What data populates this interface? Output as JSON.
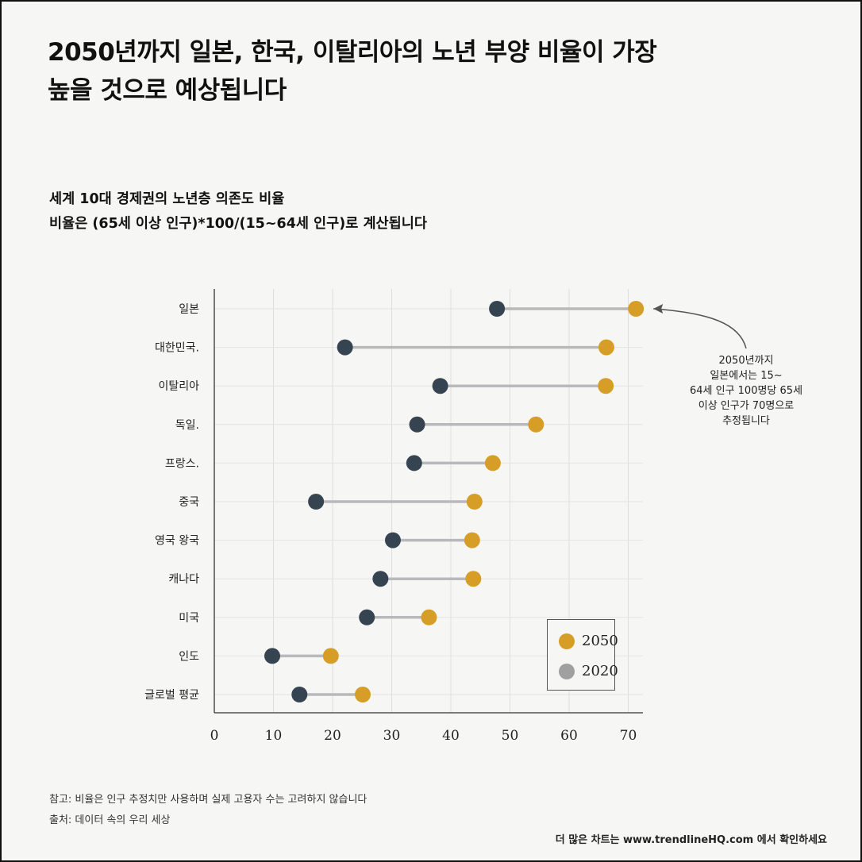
{
  "title_line1": "2050년까지 일본, 한국, 이탈리아의 노년 부양 비율이 가장",
  "title_line2": "높을 것으로 예상됩니다",
  "subtitle_line1": "세계 10대 경제권의 노년층 의존도 비율",
  "subtitle_line2": "비율은 (65세 이상 인구)*100/(15~64세 인구)로 계산됩니다",
  "annotation": {
    "line1": "2050년까지",
    "line2": "일본에서는 15~",
    "line3": "64세 인구 100명당 65세",
    "line4": "이상 인구가 70명으로",
    "line5": "추정됩니다"
  },
  "note": "참고: 비율은 인구 추정치만 사용하며 실제 고용자 수는 고려하지 않습니다",
  "source": "출처: 데이터 속의 우리 세상",
  "footer": "더 많은 차트는 www.trendlineHQ.com 에서 확인하세요",
  "colors": {
    "series_2050": "#d79e27",
    "series_2020": "#364451",
    "legend_2020": "#a0a0a0",
    "connector": "#b9b9bd"
  },
  "chart_data": {
    "type": "dumbbell",
    "categories": [
      "일본",
      "대한민국.",
      "이탈리아",
      "독일.",
      "프랑스.",
      "중국",
      "영국 왕국",
      "캐나다",
      "미국",
      "인도",
      "글로벌 평균"
    ],
    "series": [
      {
        "name": "2050",
        "values": [
          71.3,
          66.3,
          66.2,
          54.4,
          47.1,
          44.0,
          43.6,
          43.8,
          36.3,
          19.7,
          25.1
        ]
      },
      {
        "name": "2020",
        "values": [
          47.8,
          22.1,
          38.2,
          34.3,
          33.8,
          17.2,
          30.2,
          28.1,
          25.8,
          9.8,
          14.4
        ]
      }
    ],
    "xlim": [
      0,
      72
    ],
    "xticks": [
      0,
      10,
      20,
      30,
      40,
      50,
      60,
      70
    ],
    "grid": true,
    "legend": {
      "position": "bottom-right",
      "entries": [
        "2050",
        "2020"
      ]
    }
  }
}
